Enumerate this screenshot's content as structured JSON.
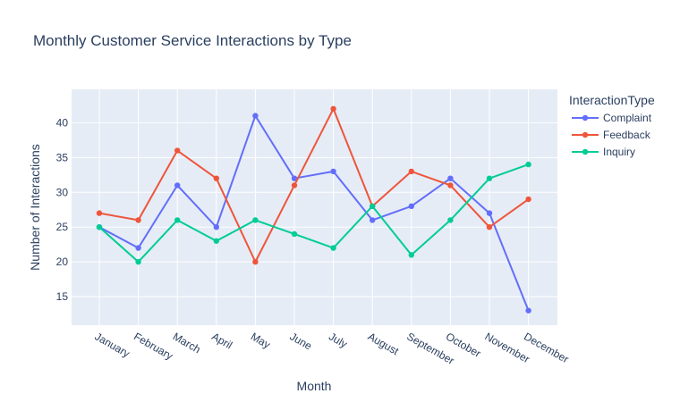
{
  "chart_data": {
    "type": "line",
    "title": "Monthly Customer Service Interactions by Type",
    "xlabel": "Month",
    "ylabel": "Number of Interactions",
    "ylim": [
      10.9,
      44.8
    ],
    "yticks": [
      15,
      20,
      25,
      30,
      35,
      40
    ],
    "grid": true,
    "legend_title": "InteractionType",
    "legend_position": "top-right",
    "categories": [
      "January",
      "February",
      "March",
      "April",
      "May",
      "June",
      "July",
      "August",
      "September",
      "October",
      "November",
      "December"
    ],
    "series": [
      {
        "name": "Complaint",
        "color": "#636efa",
        "values": [
          25,
          22,
          31,
          25,
          41,
          32,
          33,
          26,
          28,
          32,
          27,
          13
        ]
      },
      {
        "name": "Feedback",
        "color": "#EF553B",
        "values": [
          27,
          26,
          36,
          32,
          20,
          31,
          42,
          28,
          33,
          31,
          25,
          29
        ]
      },
      {
        "name": "Inquiry",
        "color": "#00cc96",
        "values": [
          25,
          20,
          26,
          23,
          26,
          24,
          22,
          28,
          21,
          26,
          32,
          34
        ]
      }
    ]
  }
}
